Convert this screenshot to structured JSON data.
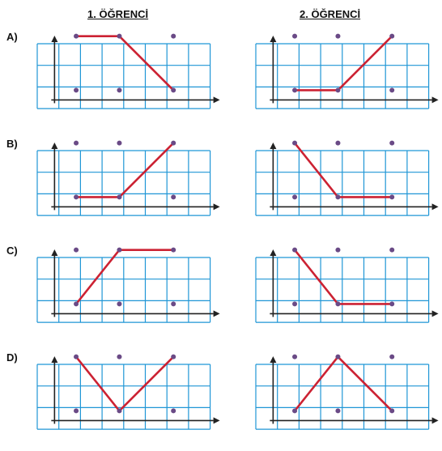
{
  "headers": {
    "student1": "1. ÖĞRENCİ",
    "student2": "2. ÖĞRENCİ"
  },
  "colors": {
    "grid": "#1f96d6",
    "axis": "#222222",
    "line": "#cc2233",
    "dot": "#6a4a86"
  },
  "options": [
    {
      "label": "A)",
      "student1": {
        "dots": [
          [
            1,
            2
          ],
          [
            1,
            0
          ],
          [
            3,
            2
          ],
          [
            3,
            0
          ],
          [
            5.5,
            2
          ],
          [
            5.5,
            0
          ]
        ],
        "path": [
          [
            1,
            2
          ],
          [
            3,
            2
          ],
          [
            5.5,
            0
          ]
        ]
      },
      "student2": {
        "dots": [
          [
            1,
            2
          ],
          [
            1,
            0
          ],
          [
            3,
            2
          ],
          [
            3,
            0
          ],
          [
            5.5,
            2
          ],
          [
            5.5,
            0
          ]
        ],
        "path": [
          [
            1,
            0
          ],
          [
            3,
            0
          ],
          [
            5.5,
            2
          ]
        ]
      }
    },
    {
      "label": "B)",
      "student1": {
        "dots": [
          [
            1,
            2
          ],
          [
            1,
            0
          ],
          [
            3,
            2
          ],
          [
            3,
            0
          ],
          [
            5.5,
            2
          ],
          [
            5.5,
            0
          ]
        ],
        "path": [
          [
            1,
            0
          ],
          [
            3,
            0
          ],
          [
            5.5,
            2
          ]
        ]
      },
      "student2": {
        "dots": [
          [
            1,
            2
          ],
          [
            1,
            0
          ],
          [
            3,
            2
          ],
          [
            3,
            0
          ],
          [
            5.5,
            2
          ],
          [
            5.5,
            0
          ]
        ],
        "path": [
          [
            1,
            2
          ],
          [
            3,
            0
          ],
          [
            5.5,
            0
          ]
        ]
      }
    },
    {
      "label": "C)",
      "student1": {
        "dots": [
          [
            1,
            2
          ],
          [
            1,
            0
          ],
          [
            3,
            2
          ],
          [
            3,
            0
          ],
          [
            5.5,
            2
          ],
          [
            5.5,
            0
          ]
        ],
        "path": [
          [
            1,
            0
          ],
          [
            3,
            2
          ],
          [
            5.5,
            2
          ]
        ]
      },
      "student2": {
        "dots": [
          [
            1,
            2
          ],
          [
            1,
            0
          ],
          [
            3,
            2
          ],
          [
            3,
            0
          ],
          [
            5.5,
            2
          ],
          [
            5.5,
            0
          ]
        ],
        "path": [
          [
            1,
            2
          ],
          [
            3,
            0
          ],
          [
            5.5,
            0
          ]
        ]
      }
    },
    {
      "label": "D)",
      "student1": {
        "dots": [
          [
            1,
            2
          ],
          [
            1,
            0
          ],
          [
            3,
            2
          ],
          [
            3,
            0
          ],
          [
            5.5,
            2
          ],
          [
            5.5,
            0
          ]
        ],
        "path": [
          [
            1,
            2
          ],
          [
            3,
            0
          ],
          [
            5.5,
            2
          ]
        ]
      },
      "student2": {
        "dots": [
          [
            1,
            2
          ],
          [
            1,
            0
          ],
          [
            3,
            2
          ],
          [
            3,
            0
          ],
          [
            5.5,
            2
          ],
          [
            5.5,
            0
          ]
        ],
        "path": [
          [
            1,
            0
          ],
          [
            3,
            2
          ],
          [
            5.5,
            0
          ]
        ]
      }
    }
  ]
}
